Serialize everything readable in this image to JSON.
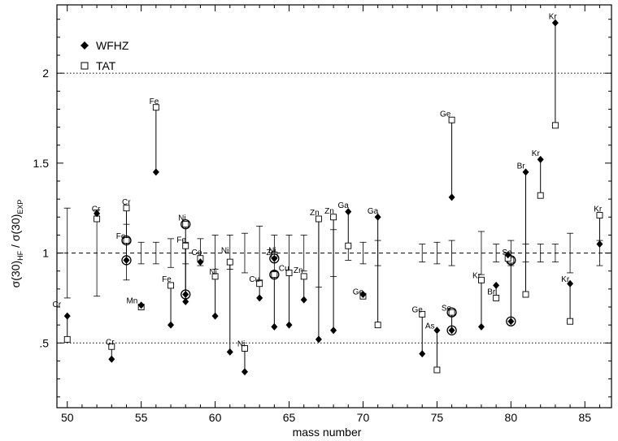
{
  "chart_data": {
    "type": "scatter",
    "xlabel": "mass number",
    "ylabel": {
      "main1": "σ(30)",
      "sub1": "HF",
      "mid": " / σ(30)",
      "sub2": "EXP"
    },
    "xlim": [
      49.3,
      86.8
    ],
    "ylim": [
      0.14,
      2.38
    ],
    "x_ticks": [
      {
        "v": 50,
        "label": "50"
      },
      {
        "v": 55,
        "label": "55"
      },
      {
        "v": 60,
        "label": "60"
      },
      {
        "v": 65,
        "label": "65"
      },
      {
        "v": 70,
        "label": "70"
      },
      {
        "v": 75,
        "label": "75"
      },
      {
        "v": 80,
        "label": "80"
      },
      {
        "v": 85,
        "label": "85"
      }
    ],
    "y_ticks": [
      {
        "v": 0.5,
        "label": ".5"
      },
      {
        "v": 1.0,
        "label": "1"
      },
      {
        "v": 1.5,
        "label": "1.5"
      },
      {
        "v": 2.0,
        "label": "2"
      }
    ],
    "reference_lines": [
      {
        "y": 1.0,
        "style": "dashed"
      },
      {
        "y": 0.5,
        "style": "dotted"
      },
      {
        "y": 2.0,
        "style": "dotted"
      }
    ],
    "legend": {
      "position": "top-left",
      "entries": [
        {
          "name": "WFHZ",
          "marker": "diamond"
        },
        {
          "name": "TAT",
          "marker": "square"
        }
      ]
    },
    "error_bars": [
      {
        "x": 50,
        "lo": 0.75,
        "hi": 1.25
      },
      {
        "x": 52,
        "lo": 0.76,
        "hi": 1.24
      },
      {
        "x": 54,
        "lo": 0.85,
        "hi": 1.16
      },
      {
        "x": 55,
        "lo": 0.94,
        "hi": 1.06
      },
      {
        "x": 56,
        "lo": 0.94,
        "hi": 1.06
      },
      {
        "x": 57,
        "lo": 0.92,
        "hi": 1.08
      },
      {
        "x": 58,
        "lo": 0.94,
        "hi": 1.06
      },
      {
        "x": 59,
        "lo": 0.93,
        "hi": 1.08
      },
      {
        "x": 60,
        "lo": 0.91,
        "hi": 1.1
      },
      {
        "x": 61,
        "lo": 0.91,
        "hi": 1.1
      },
      {
        "x": 62,
        "lo": 0.89,
        "hi": 1.11
      },
      {
        "x": 63,
        "lo": 0.85,
        "hi": 1.15
      },
      {
        "x": 64,
        "lo": 0.9,
        "hi": 1.1
      },
      {
        "x": 65,
        "lo": 0.89,
        "hi": 1.1
      },
      {
        "x": 66,
        "lo": 0.9,
        "hi": 1.1
      },
      {
        "x": 67,
        "lo": 0.81,
        "hi": 1.19
      },
      {
        "x": 68,
        "lo": 0.87,
        "hi": 1.13
      },
      {
        "x": 69,
        "lo": 0.96,
        "hi": 1.04
      },
      {
        "x": 70,
        "lo": 0.94,
        "hi": 1.06
      },
      {
        "x": 71,
        "lo": 0.93,
        "hi": 1.07
      },
      {
        "x": 74,
        "lo": 0.95,
        "hi": 1.05
      },
      {
        "x": 75,
        "lo": 0.94,
        "hi": 1.06
      },
      {
        "x": 76,
        "lo": 0.93,
        "hi": 1.07
      },
      {
        "x": 78,
        "lo": 0.88,
        "hi": 1.12
      },
      {
        "x": 79,
        "lo": 0.95,
        "hi": 1.05
      },
      {
        "x": 80,
        "lo": 0.93,
        "hi": 1.07
      },
      {
        "x": 81,
        "lo": 0.95,
        "hi": 1.05
      },
      {
        "x": 82,
        "lo": 0.95,
        "hi": 1.05
      },
      {
        "x": 83,
        "lo": 0.95,
        "hi": 1.05
      },
      {
        "x": 84,
        "lo": 0.89,
        "hi": 1.11
      },
      {
        "x": 86,
        "lo": 0.93,
        "hi": 1.07
      }
    ],
    "points": [
      {
        "el": "Cr",
        "a": 50,
        "wfhz": 0.65,
        "tat": 0.52,
        "lx": -1,
        "ly": 0.7
      },
      {
        "el": "Cr",
        "a": 52,
        "wfhz": 1.22,
        "tat": 1.19,
        "lx": -0.35,
        "ly": 1.23
      },
      {
        "el": "Cr",
        "a": 53,
        "wfhz": 0.41,
        "tat": 0.48,
        "lx": -0.4,
        "ly": 0.49
      },
      {
        "el": "Cr",
        "a": 54,
        "wfhz": 1.07,
        "tat": 1.25,
        "circle": "wfhz",
        "lx": -0.3,
        "ly": 1.27
      },
      {
        "el": "Fe",
        "a": 54,
        "wfhz": 0.96,
        "tat": 1.07,
        "circle": "wfhz",
        "lx": -0.7,
        "ly": 1.08
      },
      {
        "el": "Mn",
        "a": 55,
        "wfhz": 0.71,
        "tat": 0.7,
        "lx": -1,
        "ly": 0.72
      },
      {
        "el": "Fe",
        "a": 56,
        "wfhz": 1.45,
        "tat": 1.81,
        "lx": -0.45,
        "ly": 1.83
      },
      {
        "el": "Fe",
        "a": 57,
        "wfhz": 0.6,
        "tat": 0.82,
        "lx": -0.6,
        "ly": 0.84
      },
      {
        "el": "Ni",
        "a": 58,
        "wfhz": 0.77,
        "tat": 1.16,
        "circle": "both",
        "lx": -0.5,
        "ly": 1.18
      },
      {
        "el": "Fe",
        "a": 58,
        "wfhz": 0.73,
        "tat": 1.04,
        "lx": -0.6,
        "ly": 1.06
      },
      {
        "el": "Co",
        "a": 59,
        "wfhz": 0.95,
        "tat": 0.97,
        "lx": -0.6,
        "ly": 0.99
      },
      {
        "el": "Ni",
        "a": 60,
        "wfhz": 0.65,
        "tat": 0.87,
        "lx": -0.4,
        "ly": 0.88
      },
      {
        "el": "Ni",
        "a": 61,
        "wfhz": 0.45,
        "tat": 0.95,
        "lx": -0.6,
        "ly": 1.0
      },
      {
        "el": "Ni",
        "a": 62,
        "wfhz": 0.34,
        "tat": 0.47,
        "lx": -0.5,
        "ly": 0.48
      },
      {
        "el": "Cu",
        "a": 63,
        "wfhz": 0.75,
        "tat": 0.83,
        "lx": -0.7,
        "ly": 0.84
      },
      {
        "el": "Zn",
        "a": 64,
        "wfhz": 0.59,
        "tat": 0.88,
        "circle": "tat",
        "lx": -0.55,
        "ly": 0.99
      },
      {
        "el": "Ni",
        "a": 64,
        "wfhz": 0.97,
        "tat": 0.99,
        "circle": "wfhz",
        "lx": -0.4,
        "ly": 1.0
      },
      {
        "el": "Cu",
        "a": 65,
        "wfhz": 0.6,
        "tat": 0.89,
        "lx": -0.7,
        "ly": 0.9
      },
      {
        "el": "Zn",
        "a": 66,
        "wfhz": 0.74,
        "tat": 0.87,
        "lx": -0.7,
        "ly": 0.89
      },
      {
        "el": "Zn",
        "a": 67,
        "wfhz": 0.52,
        "tat": 1.19,
        "lx": -0.6,
        "ly": 1.21
      },
      {
        "el": "Zn",
        "a": 68,
        "wfhz": 0.57,
        "tat": 1.2,
        "lx": -0.6,
        "ly": 1.22
      },
      {
        "el": "Ga",
        "a": 69,
        "wfhz": 1.23,
        "tat": 1.04,
        "lx": -0.7,
        "ly": 1.25
      },
      {
        "el": "Ge",
        "a": 70,
        "wfhz": 0.77,
        "tat": 0.76,
        "lx": -0.7,
        "ly": 0.77
      },
      {
        "el": "Ga",
        "a": 71,
        "wfhz": 1.2,
        "tat": 0.6,
        "lx": -0.7,
        "ly": 1.22
      },
      {
        "el": "Ge",
        "a": 74,
        "wfhz": 0.44,
        "tat": 0.66,
        "lx": -0.7,
        "ly": 0.67
      },
      {
        "el": "As",
        "a": 75,
        "wfhz": 0.57,
        "tat": 0.35,
        "lx": -0.8,
        "ly": 0.58
      },
      {
        "el": "Ge",
        "a": 76,
        "wfhz": 1.31,
        "tat": 1.74,
        "lx": -0.8,
        "ly": 1.76
      },
      {
        "el": "Se",
        "a": 76,
        "wfhz": 0.57,
        "tat": 0.67,
        "circle": "both",
        "lx": -0.7,
        "ly": 0.68
      },
      {
        "el": "Kr",
        "a": 78,
        "wfhz": 0.59,
        "tat": 0.85,
        "lx": -0.6,
        "ly": 0.86
      },
      {
        "el": "Br",
        "a": 79,
        "wfhz": 0.82,
        "tat": 0.75,
        "lx": -0.6,
        "ly": 0.77
      },
      {
        "el": "Se",
        "a": 80,
        "wfhz": 0.62,
        "tat": 0.96,
        "circle": "both",
        "lx": -0.6,
        "ly": 0.99
      },
      {
        "el": "Se",
        "a": 79.8,
        "wfhz": 0.99,
        "tat": 0.97,
        "lx": 0,
        "ly": 0
      },
      {
        "el": "Br",
        "a": 81,
        "wfhz": 1.45,
        "tat": 0.77,
        "lx": -0.6,
        "ly": 1.47
      },
      {
        "el": "Kr",
        "a": 82,
        "wfhz": 1.52,
        "tat": 1.32,
        "lx": -0.6,
        "ly": 1.54
      },
      {
        "el": "Kr",
        "a": 83,
        "wfhz": 2.28,
        "tat": 1.71,
        "lx": -0.45,
        "ly": 2.3
      },
      {
        "el": "Kr",
        "a": 84,
        "wfhz": 0.83,
        "tat": 0.62,
        "lx": -0.6,
        "ly": 0.84
      },
      {
        "el": "Kr",
        "a": 86,
        "wfhz": 1.05,
        "tat": 1.21,
        "lx": -0.4,
        "ly": 1.23
      }
    ]
  }
}
